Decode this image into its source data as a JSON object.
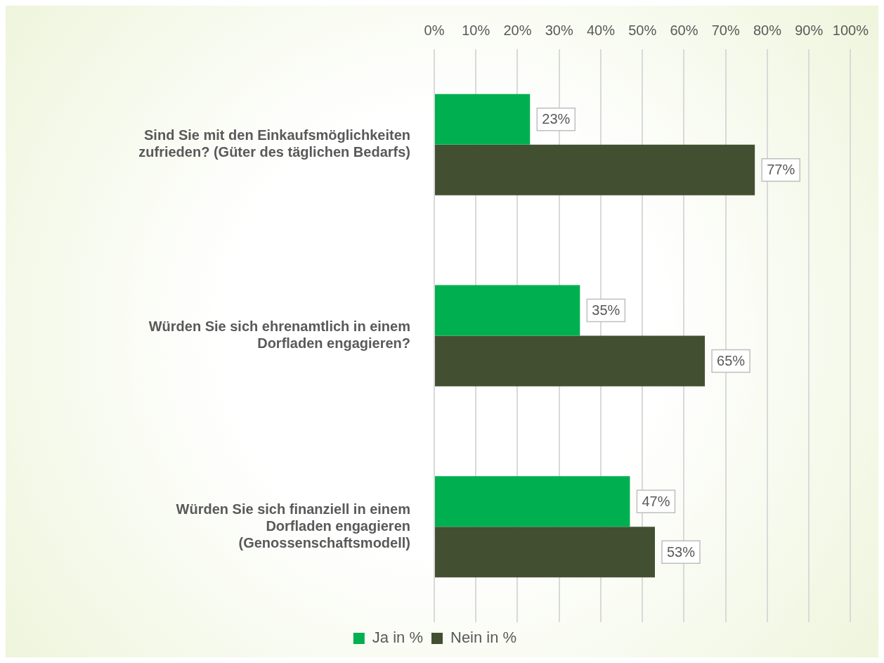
{
  "chart_data": {
    "type": "bar",
    "orientation": "horizontal",
    "categories": [
      "Sind Sie mit den Einkaufsmöglichkeiten zufrieden? (Güter des täglichen Bedarfs)",
      "Würden Sie sich ehrenamtlich in einem Dorfladen engagieren?",
      "Würden Sie sich finanziell in einem Dorfladen engagieren (Genossenschaftsmodell)"
    ],
    "series": [
      {
        "name": "Ja in %",
        "color": "#00b050",
        "values": [
          23,
          35,
          47
        ],
        "value_labels": [
          "23%",
          "35%",
          "47%"
        ]
      },
      {
        "name": "Nein in %",
        "color": "#434f31",
        "values": [
          77,
          65,
          53
        ],
        "value_labels": [
          "77%",
          "65%",
          "53%"
        ]
      }
    ],
    "xlim": [
      0,
      100
    ],
    "xticks": [
      {
        "value": 0,
        "label": "0%"
      },
      {
        "value": 10,
        "label": "10%"
      },
      {
        "value": 20,
        "label": "20%"
      },
      {
        "value": 30,
        "label": "30%"
      },
      {
        "value": 40,
        "label": "40%"
      },
      {
        "value": 50,
        "label": "50%"
      },
      {
        "value": 60,
        "label": "60%"
      },
      {
        "value": 70,
        "label": "70%"
      },
      {
        "value": 80,
        "label": "80%"
      },
      {
        "value": 90,
        "label": "90%"
      },
      {
        "value": 100,
        "label": "100%"
      }
    ],
    "grid": "x",
    "legend": "bottom"
  }
}
